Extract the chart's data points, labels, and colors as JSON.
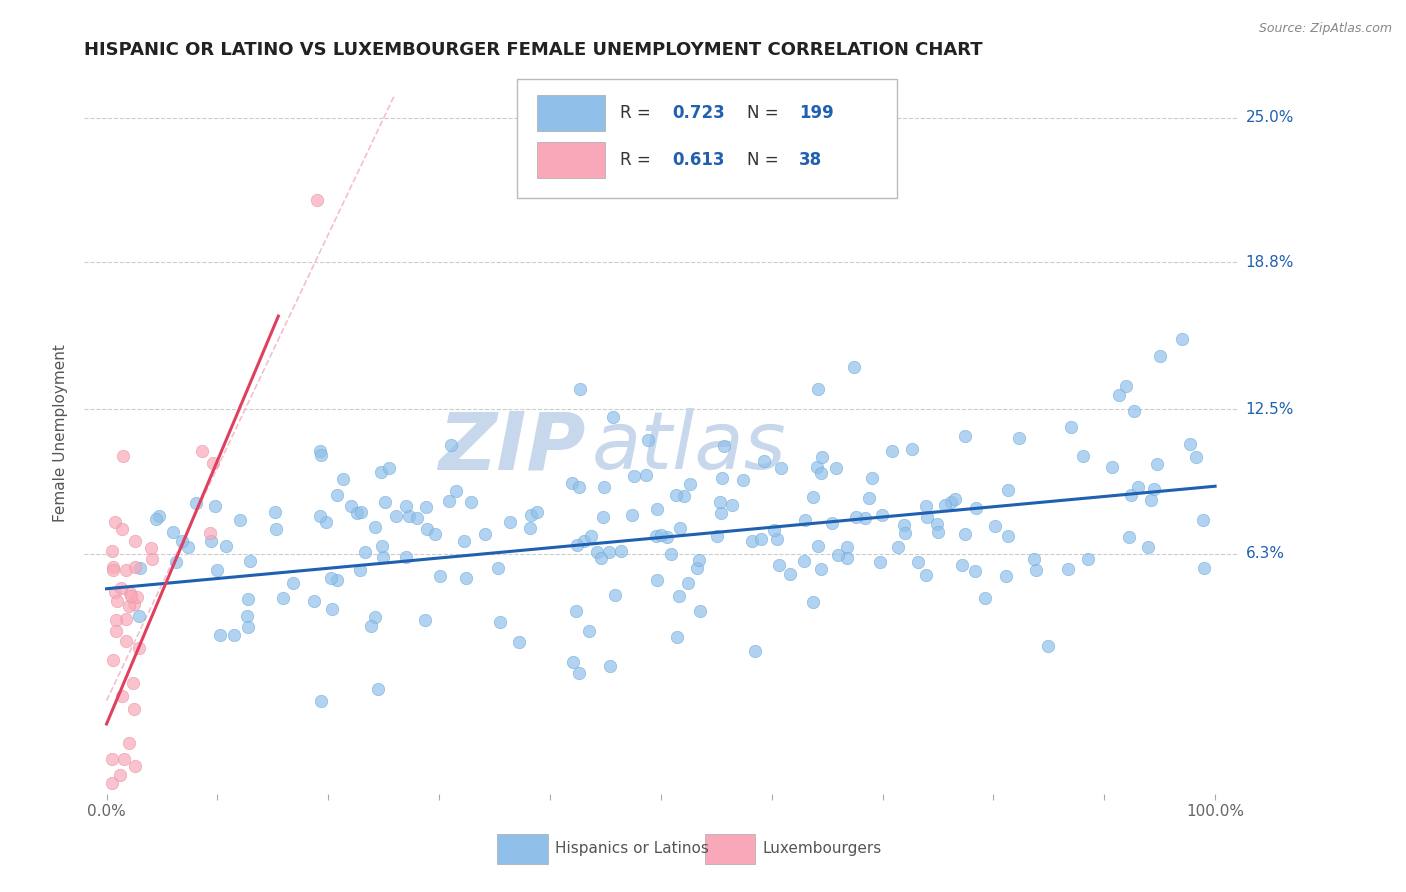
{
  "title": "HISPANIC OR LATINO VS LUXEMBOURGER FEMALE UNEMPLOYMENT CORRELATION CHART",
  "source_text": "Source: ZipAtlas.com",
  "ylabel": "Female Unemployment",
  "xlim": [
    -0.02,
    1.02
  ],
  "ylim": [
    -0.04,
    0.27
  ],
  "yticks": [
    0.063,
    0.125,
    0.188,
    0.25
  ],
  "ytick_labels": [
    "6.3%",
    "12.5%",
    "18.8%",
    "25.0%"
  ],
  "blue_color": "#90C0EA",
  "blue_edge_color": "#6AAAD8",
  "blue_line_color": "#2060B0",
  "pink_color": "#F8A8B8",
  "pink_edge_color": "#E890A0",
  "pink_line_color": "#E04060",
  "legend_blue_label": "Hispanics or Latinos",
  "legend_pink_label": "Luxembourgers",
  "R_blue": 0.723,
  "N_blue": 199,
  "R_pink": 0.613,
  "N_pink": 38,
  "blue_trend_x0": 0.0,
  "blue_trend_y0": 0.048,
  "blue_trend_x1": 1.0,
  "blue_trend_y1": 0.092,
  "pink_trend_x0": 0.0,
  "pink_trend_y0": -0.01,
  "pink_trend_x1": 0.155,
  "pink_trend_y1": 0.165,
  "ref_line_color": "#F0B0C0",
  "background_color": "#FFFFFF",
  "grid_color": "#CCCCCC",
  "title_fontsize": 13,
  "axis_label_fontsize": 11,
  "tick_fontsize": 11,
  "watermark_zip_color": "#C8D8EC",
  "watermark_atlas_color": "#C8D8EC",
  "watermark_fontsize": 58,
  "blue_scatter_seed": 12,
  "pink_scatter_seed": 99
}
